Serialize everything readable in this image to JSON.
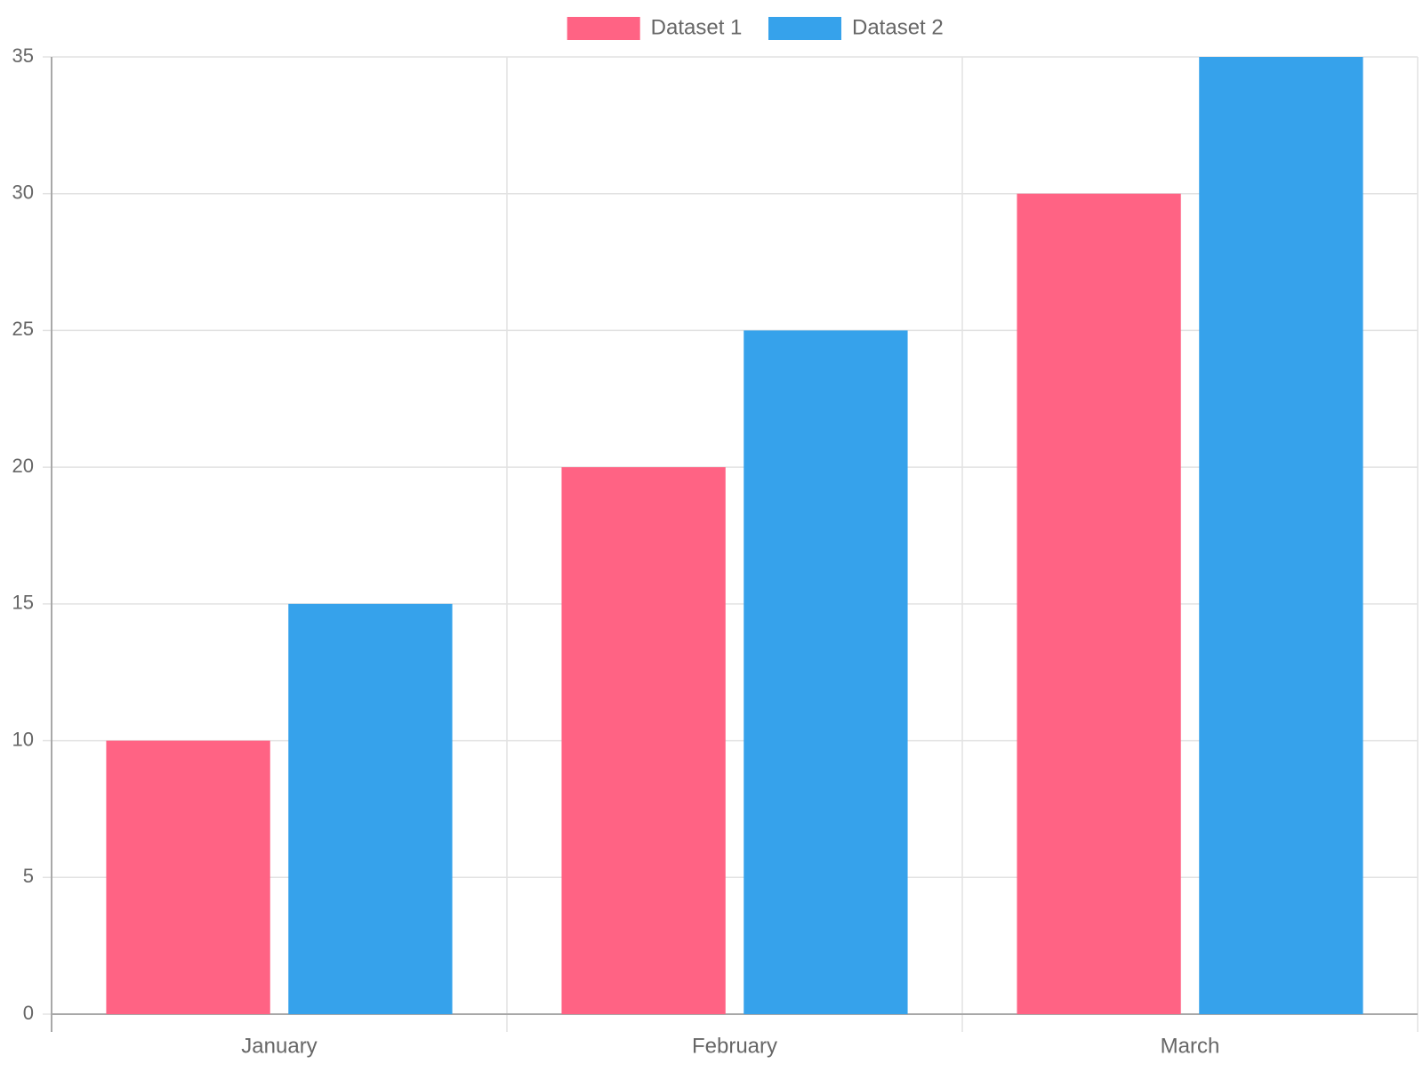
{
  "chart_data": {
    "type": "bar",
    "categories": [
      "January",
      "February",
      "March"
    ],
    "series": [
      {
        "name": "Dataset 1",
        "values": [
          10,
          20,
          30
        ],
        "color": "#ff6384"
      },
      {
        "name": "Dataset 2",
        "values": [
          15,
          25,
          35
        ],
        "color": "#36a2eb"
      }
    ],
    "ylim": [
      0,
      35
    ],
    "yticks": [
      0,
      5,
      10,
      15,
      20,
      25,
      30,
      35
    ],
    "grid": true,
    "legend": "top-center"
  }
}
